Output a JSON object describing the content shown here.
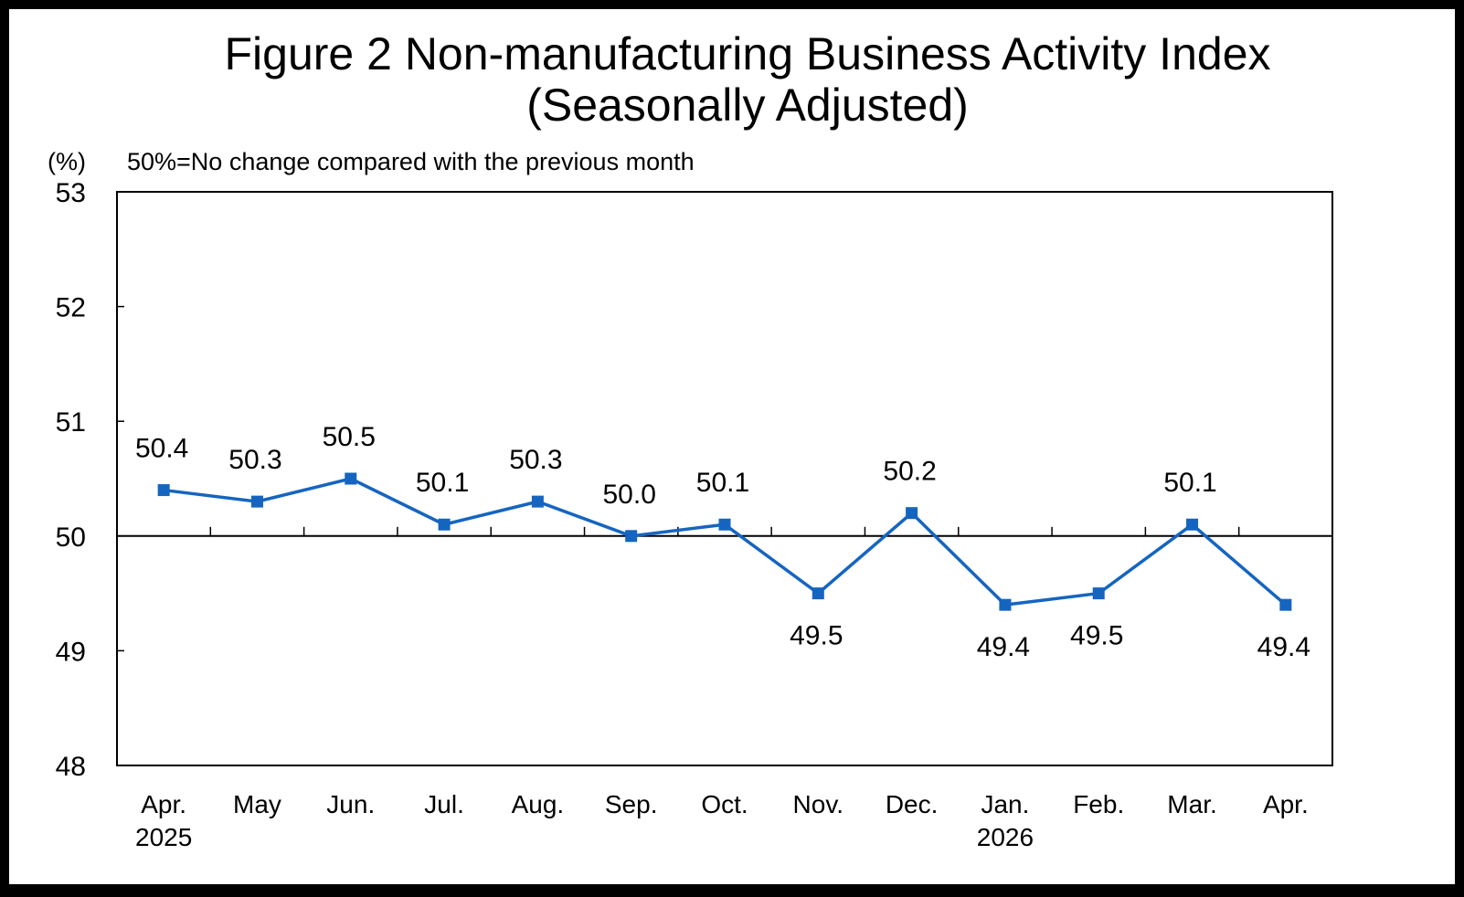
{
  "chart_data": {
    "type": "line",
    "title_line1": "Figure 2  Non-manufacturing Business Activity Index",
    "title_line2": "(Seasonally Adjusted)",
    "ylabel": "(%)",
    "note": "50%=No change compared with the previous month",
    "ylim": [
      48,
      53
    ],
    "yticks": [
      "53",
      "52",
      "51",
      "50",
      "49",
      "48"
    ],
    "reference_line": 50,
    "categories": [
      "Apr.",
      "May",
      "Jun.",
      "Jul.",
      "Aug.",
      "Sep.",
      "Oct.",
      "Nov.",
      "Dec.",
      "Jan.",
      "Feb.",
      "Mar.",
      "Apr."
    ],
    "year_labels": [
      "2025",
      "",
      "",
      "",
      "",
      "",
      "",
      "",
      "",
      "2026",
      "",
      "",
      ""
    ],
    "series": [
      {
        "name": "Non-manufacturing Business Activity Index",
        "color": "#1565c0",
        "values": [
          50.4,
          50.3,
          50.5,
          50.1,
          50.3,
          50.0,
          50.1,
          49.5,
          50.2,
          49.4,
          49.5,
          50.1,
          49.4
        ],
        "labels": [
          "50.4",
          "50.3",
          "50.5",
          "50.1",
          "50.3",
          "50.0",
          "50.1",
          "49.5",
          "50.2",
          "49.4",
          "49.5",
          "50.1",
          "49.4"
        ],
        "label_positions": [
          "above",
          "above",
          "above",
          "above",
          "above",
          "above",
          "above",
          "below",
          "above",
          "below",
          "below",
          "above",
          "below"
        ]
      }
    ]
  }
}
